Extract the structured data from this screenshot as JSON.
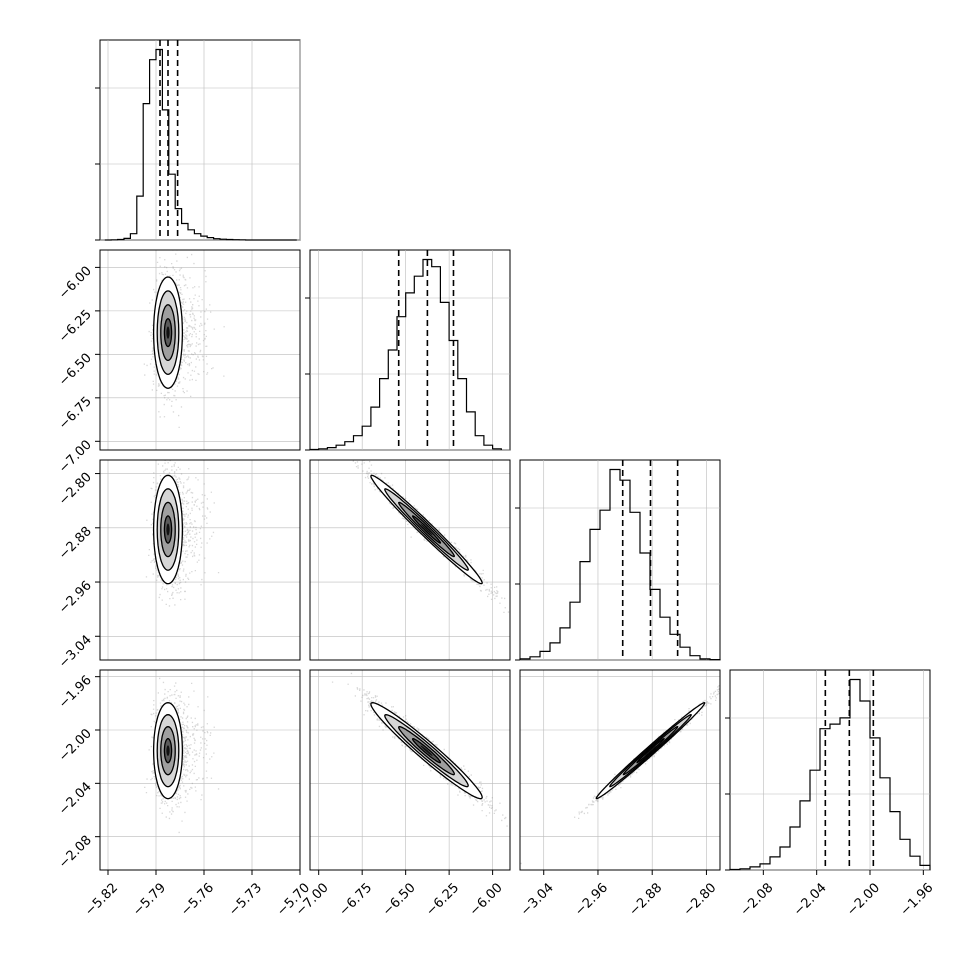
{
  "chart_data": {
    "type": "corner",
    "title": "",
    "parameters": [
      {
        "label": "",
        "range": [
          -5.825,
          -5.7
        ],
        "ticks": [
          -5.82,
          -5.79,
          -5.76,
          -5.73,
          -5.7
        ],
        "tick_labels": [
          "−5.82",
          "−5.79",
          "−5.76",
          "−5.73",
          "−5.70"
        ],
        "quantiles": [
          -5.7875,
          -5.7825,
          -5.7765
        ],
        "hist": {
          "edges": [
            -5.822,
            -5.818,
            -5.814,
            -5.81,
            -5.806,
            -5.802,
            -5.798,
            -5.794,
            -5.79,
            -5.786,
            -5.782,
            -5.778,
            -5.774,
            -5.77,
            -5.766,
            -5.762,
            -5.758,
            -5.754,
            -5.75,
            -5.746,
            -5.742,
            -5.738,
            -5.734,
            -5.73,
            -5.726,
            -5.722,
            -5.718,
            -5.714,
            -5.71,
            -5.706,
            -5.702
          ],
          "counts": [
            0,
            1,
            3,
            10,
            40,
            280,
            870,
            1150,
            1215,
            830,
            420,
            200,
            105,
            65,
            40,
            25,
            15,
            8,
            5,
            3,
            2,
            1,
            0,
            0,
            0,
            0,
            0,
            0,
            0,
            0
          ]
        }
      },
      {
        "label": "",
        "range": [
          -7.05,
          -5.9
        ],
        "ticks": [
          -7.0,
          -6.75,
          -6.5,
          -6.25,
          -6.0
        ],
        "tick_labels": [
          "−7.00",
          "−6.75",
          "−6.50",
          "−6.25",
          "−6.00"
        ],
        "quantiles": [
          -6.54,
          -6.375,
          -6.225
        ],
        "hist": {
          "edges": [
            -7.05,
            -7.0,
            -6.95,
            -6.9,
            -6.85,
            -6.8,
            -6.75,
            -6.7,
            -6.65,
            -6.6,
            -6.55,
            -6.5,
            -6.45,
            -6.4,
            -6.35,
            -6.3,
            -6.25,
            -6.2,
            -6.15,
            -6.1,
            -6.05,
            -6.0,
            -5.95
          ],
          "counts": [
            2,
            5,
            10,
            20,
            35,
            60,
            100,
            180,
            300,
            420,
            560,
            660,
            730,
            800,
            770,
            620,
            460,
            300,
            160,
            60,
            20,
            5
          ]
        }
      },
      {
        "label": "",
        "range": [
          -3.075,
          -2.78
        ],
        "ticks": [
          -3.04,
          -2.96,
          -2.88,
          -2.8
        ],
        "tick_labels": [
          "−3.04",
          "−2.96",
          "−2.88",
          "−2.80"
        ],
        "quantiles": [
          -2.9235,
          -2.8825,
          -2.8425
        ],
        "hist": {
          "edges": [
            -3.075,
            -3.0603,
            -3.0455,
            -3.0308,
            -3.016,
            -3.0013,
            -2.9865,
            -2.9718,
            -2.957,
            -2.9423,
            -2.9275,
            -2.9128,
            -2.898,
            -2.8833,
            -2.8685,
            -2.8538,
            -2.839,
            -2.8243,
            -2.8095,
            -2.7948,
            -2.78
          ],
          "counts": [
            5,
            15,
            40,
            80,
            150,
            270,
            460,
            610,
            700,
            890,
            840,
            690,
            500,
            330,
            200,
            120,
            60,
            20,
            5,
            2
          ]
        }
      },
      {
        "label": "",
        "range": [
          -2.105,
          -1.955
        ],
        "ticks": [
          -2.08,
          -2.04,
          -2.0,
          -1.96
        ],
        "tick_labels": [
          "−2.08",
          "−2.04",
          "−2.00",
          "−1.96"
        ],
        "quantiles": [
          -2.0335,
          -2.0155,
          -1.9975
        ],
        "hist": {
          "edges": [
            -2.105,
            -2.0975,
            -2.09,
            -2.0825,
            -2.075,
            -2.0675,
            -2.06,
            -2.0525,
            -2.045,
            -2.0375,
            -2.03,
            -2.0225,
            -2.015,
            -2.0075,
            -2.0,
            -1.9925,
            -1.985,
            -1.9775,
            -1.97,
            -1.9625,
            -1.955
          ],
          "counts": [
            3,
            8,
            20,
            40,
            85,
            150,
            280,
            450,
            650,
            920,
            950,
            990,
            1240,
            1100,
            860,
            600,
            380,
            200,
            90,
            30
          ]
        }
      }
    ],
    "pairs": [
      {
        "x": 0,
        "y": 1,
        "cx": -5.7825,
        "cy": -6.375,
        "sx": 0.0045,
        "sy": 0.16,
        "rho": 0.0
      },
      {
        "x": 0,
        "y": 2,
        "cx": -5.7825,
        "cy": -2.8825,
        "sx": 0.0045,
        "sy": 0.04,
        "rho": 0.0
      },
      {
        "x": 0,
        "y": 3,
        "cx": -5.7825,
        "cy": -2.0155,
        "sx": 0.0045,
        "sy": 0.018,
        "rho": 0.0
      },
      {
        "x": 1,
        "y": 2,
        "cx": -6.38,
        "cy": -2.8825,
        "sx": 0.16,
        "sy": 0.04,
        "rho": -0.985
      },
      {
        "x": 1,
        "y": 3,
        "cx": -6.38,
        "cy": -2.0155,
        "sx": 0.16,
        "sy": 0.018,
        "rho": -0.97
      },
      {
        "x": 2,
        "y": 3,
        "cx": -2.8825,
        "cy": -2.0155,
        "sx": 0.04,
        "sy": 0.018,
        "rho": 0.993
      }
    ],
    "contour_levels_sigma": [
      0.5,
      1.0,
      1.5,
      2.0
    ],
    "grid": true,
    "legend": "none"
  }
}
